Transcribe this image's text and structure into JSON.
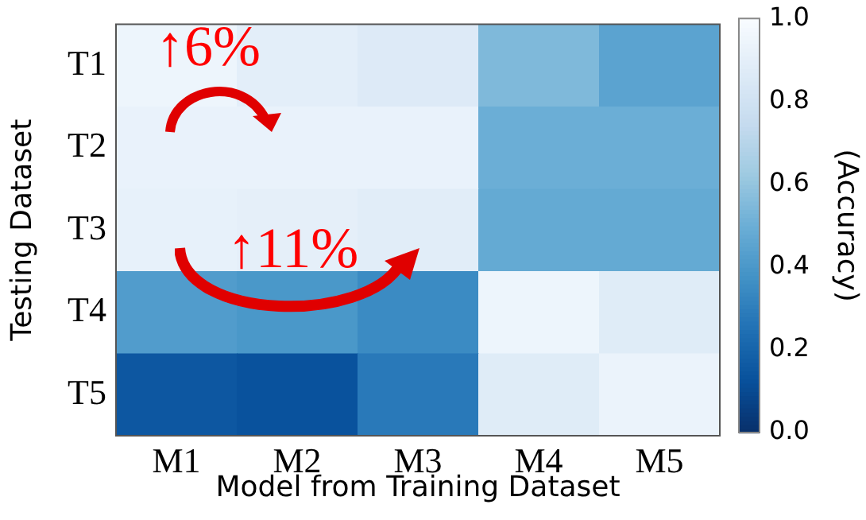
{
  "chart_data": {
    "type": "heatmap",
    "xlabel": "Model from Training Dataset",
    "ylabel": "Testing Dataset",
    "clabel": "(Accuracy)",
    "categories": [
      "M1",
      "M2",
      "M3",
      "M4",
      "M5"
    ],
    "y_categories": [
      "T1",
      "T2",
      "T3",
      "T4",
      "T5"
    ],
    "cells": [
      [
        0.95,
        0.9,
        0.87,
        0.55,
        0.45
      ],
      [
        0.93,
        0.93,
        0.93,
        0.5,
        0.5
      ],
      [
        0.92,
        0.91,
        0.89,
        0.48,
        0.48
      ],
      [
        0.42,
        0.4,
        0.35,
        0.95,
        0.88
      ],
      [
        0.15,
        0.13,
        0.28,
        0.88,
        0.94
      ]
    ],
    "clim": [
      0,
      1
    ],
    "cticks": [
      {
        "value": 0,
        "label": "0.0"
      },
      0.2,
      0.4,
      0.6,
      0.8,
      {
        "value": 1,
        "label": "1.0"
      }
    ],
    "annotations": [
      "↑6%",
      "↑11%"
    ]
  }
}
